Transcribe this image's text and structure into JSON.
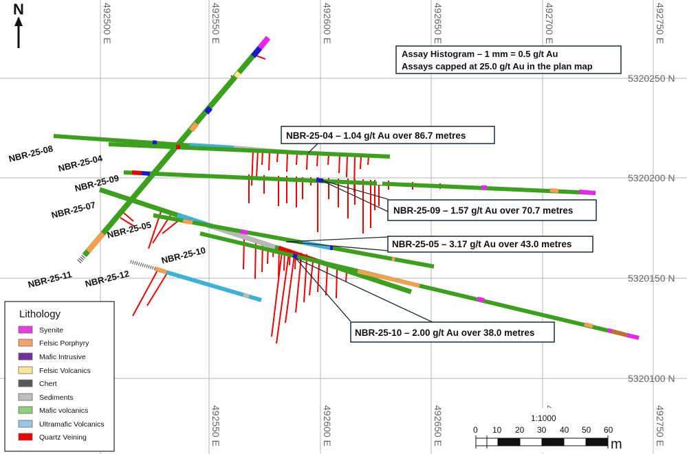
{
  "map": {
    "north_label": "N",
    "eastings": [
      {
        "value": 492500,
        "label": "492500 E"
      },
      {
        "value": 492550,
        "label": "492550 E"
      },
      {
        "value": 492600,
        "label": "492600 E"
      },
      {
        "value": 492650,
        "label": "492650 E"
      },
      {
        "value": 492700,
        "label": "492700 E"
      },
      {
        "value": 492750,
        "label": "492750 E"
      }
    ],
    "northings": [
      {
        "value": 5320250,
        "label": "5320250 N"
      },
      {
        "value": 5320200,
        "label": "5320200 N"
      },
      {
        "value": 5320150,
        "label": "5320150 N"
      },
      {
        "value": 5320100,
        "label": "5320100 N"
      }
    ],
    "note": {
      "line1": "Assay Histogram – 1 mm = 0.5 g/t Au",
      "line2": "Assays capped at 25.0 g/t Au in the plan map"
    },
    "drill_holes": [
      {
        "id": "NBR-25-08",
        "label": "NBR-25-08"
      },
      {
        "id": "NBR-25-04",
        "label": "NBR-25-04"
      },
      {
        "id": "NBR-25-09",
        "label": "NBR-25-09"
      },
      {
        "id": "NBR-25-07",
        "label": "NBR-25-07"
      },
      {
        "id": "NBR-25-05",
        "label": "NBR-25-05"
      },
      {
        "id": "NBR-25-10",
        "label": "NBR-25-10"
      },
      {
        "id": "NBR-25-11",
        "label": "NBR-25-11"
      },
      {
        "id": "NBR-25-12",
        "label": "NBR-25-12"
      }
    ],
    "callouts": [
      {
        "hole": "NBR-25-04",
        "text": "NBR-25-04 – 1.04 g/t Au over 86.7 metres",
        "grade_gpt": 1.04,
        "length_m": 86.7
      },
      {
        "hole": "NBR-25-09",
        "text": "NBR-25-09 – 1.57 g/t Au over 70.7 metres",
        "grade_gpt": 1.57,
        "length_m": 70.7
      },
      {
        "hole": "NBR-25-05",
        "text": "NBR-25-05 – 3.17 g/t Au over 43.0 metres",
        "grade_gpt": 3.17,
        "length_m": 43.0
      },
      {
        "hole": "NBR-25-10",
        "text": "NBR-25-10 – 2.00 g/t Au over 38.0 metres",
        "grade_gpt": 2.0,
        "length_m": 38.0
      }
    ],
    "legend": {
      "title": "Lithology",
      "items": [
        {
          "name": "Syenite",
          "color": "#e83ee0"
        },
        {
          "name": "Felsic Porphyry",
          "color": "#f4a46a"
        },
        {
          "name": "Mafic Intrusive",
          "color": "#7030a0"
        },
        {
          "name": "Felsic Volcanics",
          "color": "#ffe699"
        },
        {
          "name": "Chert",
          "color": "#595959"
        },
        {
          "name": "Sediments",
          "color": "#bfbfbf"
        },
        {
          "name": "Mafic volcanics",
          "color": "#8fd17a"
        },
        {
          "name": "Ultramafic Volcanics",
          "color": "#9dc3e6"
        },
        {
          "name": "Quartz Veining",
          "color": "#ee0000"
        }
      ]
    },
    "scale": {
      "ratio": "1:1000",
      "ticks": [
        "0",
        "10",
        "20",
        "30",
        "40",
        "50",
        "60"
      ],
      "unit": "m"
    },
    "colors": {
      "mafic_volcanics_trace": "#3ca01e",
      "assay_histogram": "#ee0000",
      "ultramafic": "#3fb0d6",
      "sediments": "#b8b8b8",
      "felsic_porphyry": "#f0a050",
      "syenite": "#ee22ee",
      "mafic_intrusive": "#1a1acc",
      "grid": "#b0b0b0"
    }
  }
}
